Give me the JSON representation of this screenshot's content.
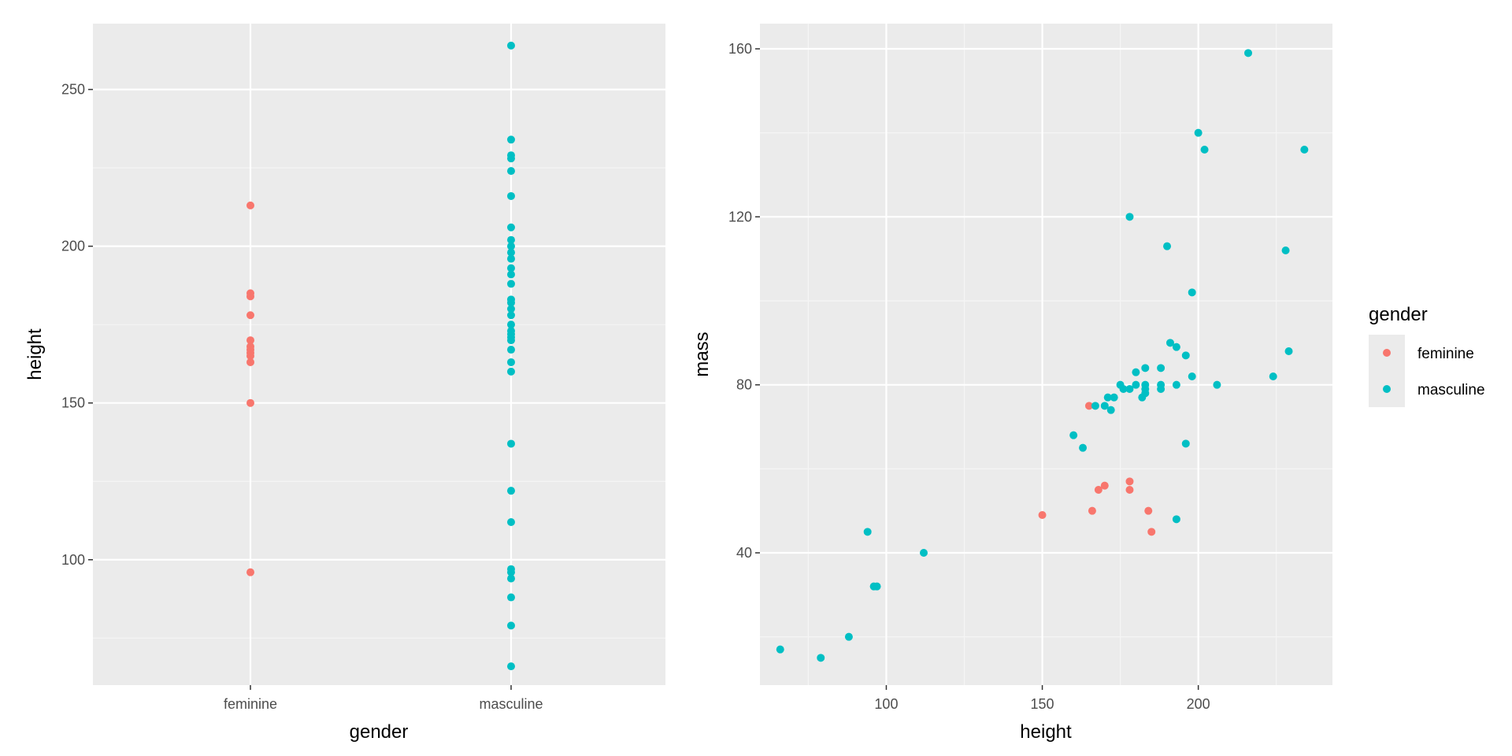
{
  "colors": {
    "feminine": "#F8766D",
    "masculine": "#00BFC4",
    "panel": "#EBEBEB",
    "grid_major": "#FFFFFF",
    "grid_minor": "#F5F5F5"
  },
  "chart_data": [
    {
      "type": "scatter",
      "title": "",
      "xlabel": "gender",
      "ylabel": "height",
      "categories": [
        "feminine",
        "masculine"
      ],
      "ylim": [
        60,
        271
      ],
      "y_ticks": [
        100,
        150,
        200,
        250
      ],
      "series": [
        {
          "name": "feminine",
          "x": "feminine",
          "values": [
            213,
            185,
            184,
            178,
            170,
            168,
            167,
            166,
            165,
            163,
            150,
            96
          ]
        },
        {
          "name": "masculine",
          "x": "masculine",
          "values": [
            264,
            234,
            229,
            228,
            224,
            216,
            206,
            202,
            200,
            198,
            196,
            193,
            191,
            188,
            183,
            182,
            180,
            178,
            175,
            173,
            172,
            171,
            170,
            167,
            163,
            160,
            137,
            122,
            112,
            97,
            96,
            94,
            88,
            79,
            66
          ]
        }
      ]
    },
    {
      "type": "scatter",
      "title": "",
      "xlabel": "height",
      "ylabel": "mass",
      "xlim": [
        59.5,
        243
      ],
      "ylim": [
        8.5,
        166
      ],
      "x_ticks": [
        100,
        150,
        200
      ],
      "y_ticks": [
        40,
        80,
        120,
        160
      ],
      "legend": {
        "title": "gender",
        "entries": [
          "feminine",
          "masculine"
        ],
        "position": "right"
      },
      "series": [
        {
          "name": "feminine",
          "points": [
            [
              165,
              75
            ],
            [
              150,
              49
            ],
            [
              166,
              50
            ],
            [
              168,
              55
            ],
            [
              170,
              56
            ],
            [
              178,
              57
            ],
            [
              178,
              55
            ],
            [
              184,
              50
            ],
            [
              185,
              45
            ]
          ]
        },
        {
          "name": "masculine",
          "points": [
            [
              216,
              159
            ],
            [
              200,
              140
            ],
            [
              202,
              136
            ],
            [
              234,
              136
            ],
            [
              178,
              120
            ],
            [
              190,
              113
            ],
            [
              228,
              112
            ],
            [
              198,
              102
            ],
            [
              191,
              90
            ],
            [
              193,
              89
            ],
            [
              196,
              87
            ],
            [
              229,
              88
            ],
            [
              183,
              84
            ],
            [
              188,
              84
            ],
            [
              180,
              83
            ],
            [
              198,
              82
            ],
            [
              224,
              82
            ],
            [
              175,
              80
            ],
            [
              180,
              80
            ],
            [
              183,
              80
            ],
            [
              188,
              80
            ],
            [
              193,
              80
            ],
            [
              206,
              80
            ],
            [
              176,
              79
            ],
            [
              178,
              79
            ],
            [
              183,
              79
            ],
            [
              188,
              79
            ],
            [
              171,
              77
            ],
            [
              173,
              77
            ],
            [
              182,
              77
            ],
            [
              183,
              78
            ],
            [
              167,
              75
            ],
            [
              170,
              75
            ],
            [
              172,
              74
            ],
            [
              160,
              68
            ],
            [
              163,
              65
            ],
            [
              196,
              66
            ],
            [
              193,
              48
            ],
            [
              94,
              45
            ],
            [
              112,
              40
            ],
            [
              96,
              32
            ],
            [
              97,
              32
            ],
            [
              88,
              20
            ],
            [
              66,
              17
            ],
            [
              79,
              15
            ]
          ]
        }
      ]
    }
  ]
}
